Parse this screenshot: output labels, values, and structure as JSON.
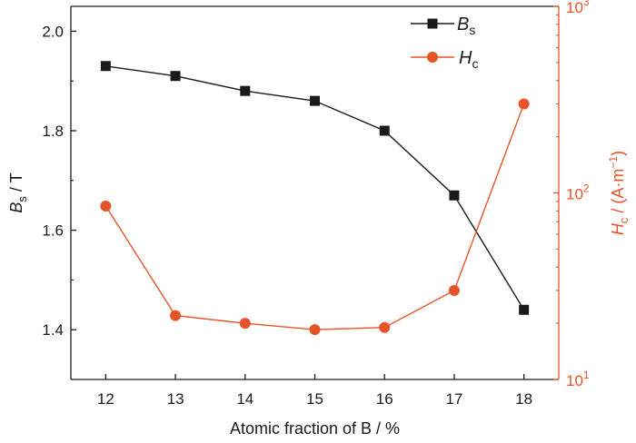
{
  "chart_data": {
    "type": "line",
    "x": [
      12,
      13,
      14,
      15,
      16,
      17,
      18
    ],
    "xlabel": "Atomic fraction of B / %",
    "xlim": [
      11.5,
      18.5
    ],
    "x_ticks": [
      "12",
      "13",
      "14",
      "15",
      "16",
      "17",
      "18"
    ],
    "series": [
      {
        "name": "Bs",
        "name_main": "B",
        "name_sub": "s",
        "axis": "left",
        "marker": "square",
        "color": "#1a1a1a",
        "values": [
          1.93,
          1.91,
          1.88,
          1.86,
          1.8,
          1.67,
          1.44
        ]
      },
      {
        "name": "Hc",
        "name_main": "H",
        "name_sub": "c",
        "axis": "right",
        "marker": "circle",
        "color": "#e8542a",
        "values": [
          85,
          22,
          20,
          18.5,
          19,
          30,
          300
        ]
      }
    ],
    "y_left": {
      "label_main": "B",
      "label_sub": "s",
      "label_rest": " / T",
      "lim": [
        1.3,
        2.05
      ],
      "ticks": [
        1.4,
        1.6,
        1.8,
        2.0
      ],
      "tick_labels": [
        "1.4",
        "1.6",
        "1.8",
        "2.0"
      ]
    },
    "y_right": {
      "label_main": "H",
      "label_sub": "c",
      "label_rest": " / (A·m",
      "label_sup": "−1",
      "label_end": ")",
      "scale": "log",
      "lim": [
        10,
        1000
      ],
      "ticks": [
        10,
        100,
        1000
      ],
      "tick_base": "10",
      "tick_exponents": [
        "1",
        "2",
        "3"
      ]
    },
    "legend_position": "top-right",
    "grid": false
  }
}
